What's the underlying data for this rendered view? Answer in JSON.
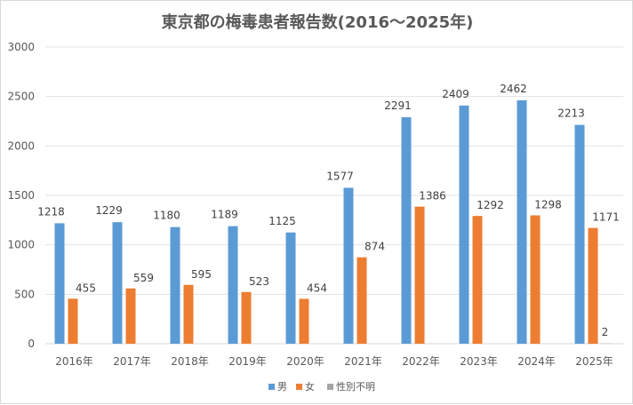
{
  "chart_data": {
    "type": "bar",
    "title": "東京都の梅毒患者報告数(2016～2025年)",
    "xlabel": "",
    "ylabel": "",
    "categories": [
      "2016年",
      "2017年",
      "2018年",
      "2019年",
      "2020年",
      "2021年",
      "2022年",
      "2023年",
      "2024年",
      "2025年"
    ],
    "ylim": [
      0,
      3000
    ],
    "yticks": [
      "0",
      "500",
      "1000",
      "1500",
      "2000",
      "2500",
      "3000"
    ],
    "grid": true,
    "legend_position": "bottom",
    "series": [
      {
        "name": "男",
        "color": "#5b9bd5",
        "values": [
          1218,
          1229,
          1180,
          1189,
          1125,
          1577,
          2291,
          2409,
          2462,
          2213
        ],
        "labels": [
          "1218",
          "1229",
          "1180",
          "1189",
          "1125",
          "1577",
          "2291",
          "2409",
          "2462",
          "2213"
        ]
      },
      {
        "name": "女",
        "color": "#ed7d31",
        "values": [
          455,
          559,
          595,
          523,
          454,
          874,
          1386,
          1292,
          1298,
          1171
        ],
        "labels": [
          "455",
          "559",
          "595",
          "523",
          "454",
          "874",
          "1386",
          "1292",
          "1298",
          "1171"
        ]
      },
      {
        "name": "性別不明",
        "color": "#a5a5a5",
        "values": [
          null,
          null,
          null,
          null,
          null,
          null,
          null,
          null,
          null,
          2
        ],
        "labels": [
          "",
          "",
          "",
          "",
          "",
          "",
          "",
          "",
          "",
          "2"
        ]
      }
    ]
  }
}
